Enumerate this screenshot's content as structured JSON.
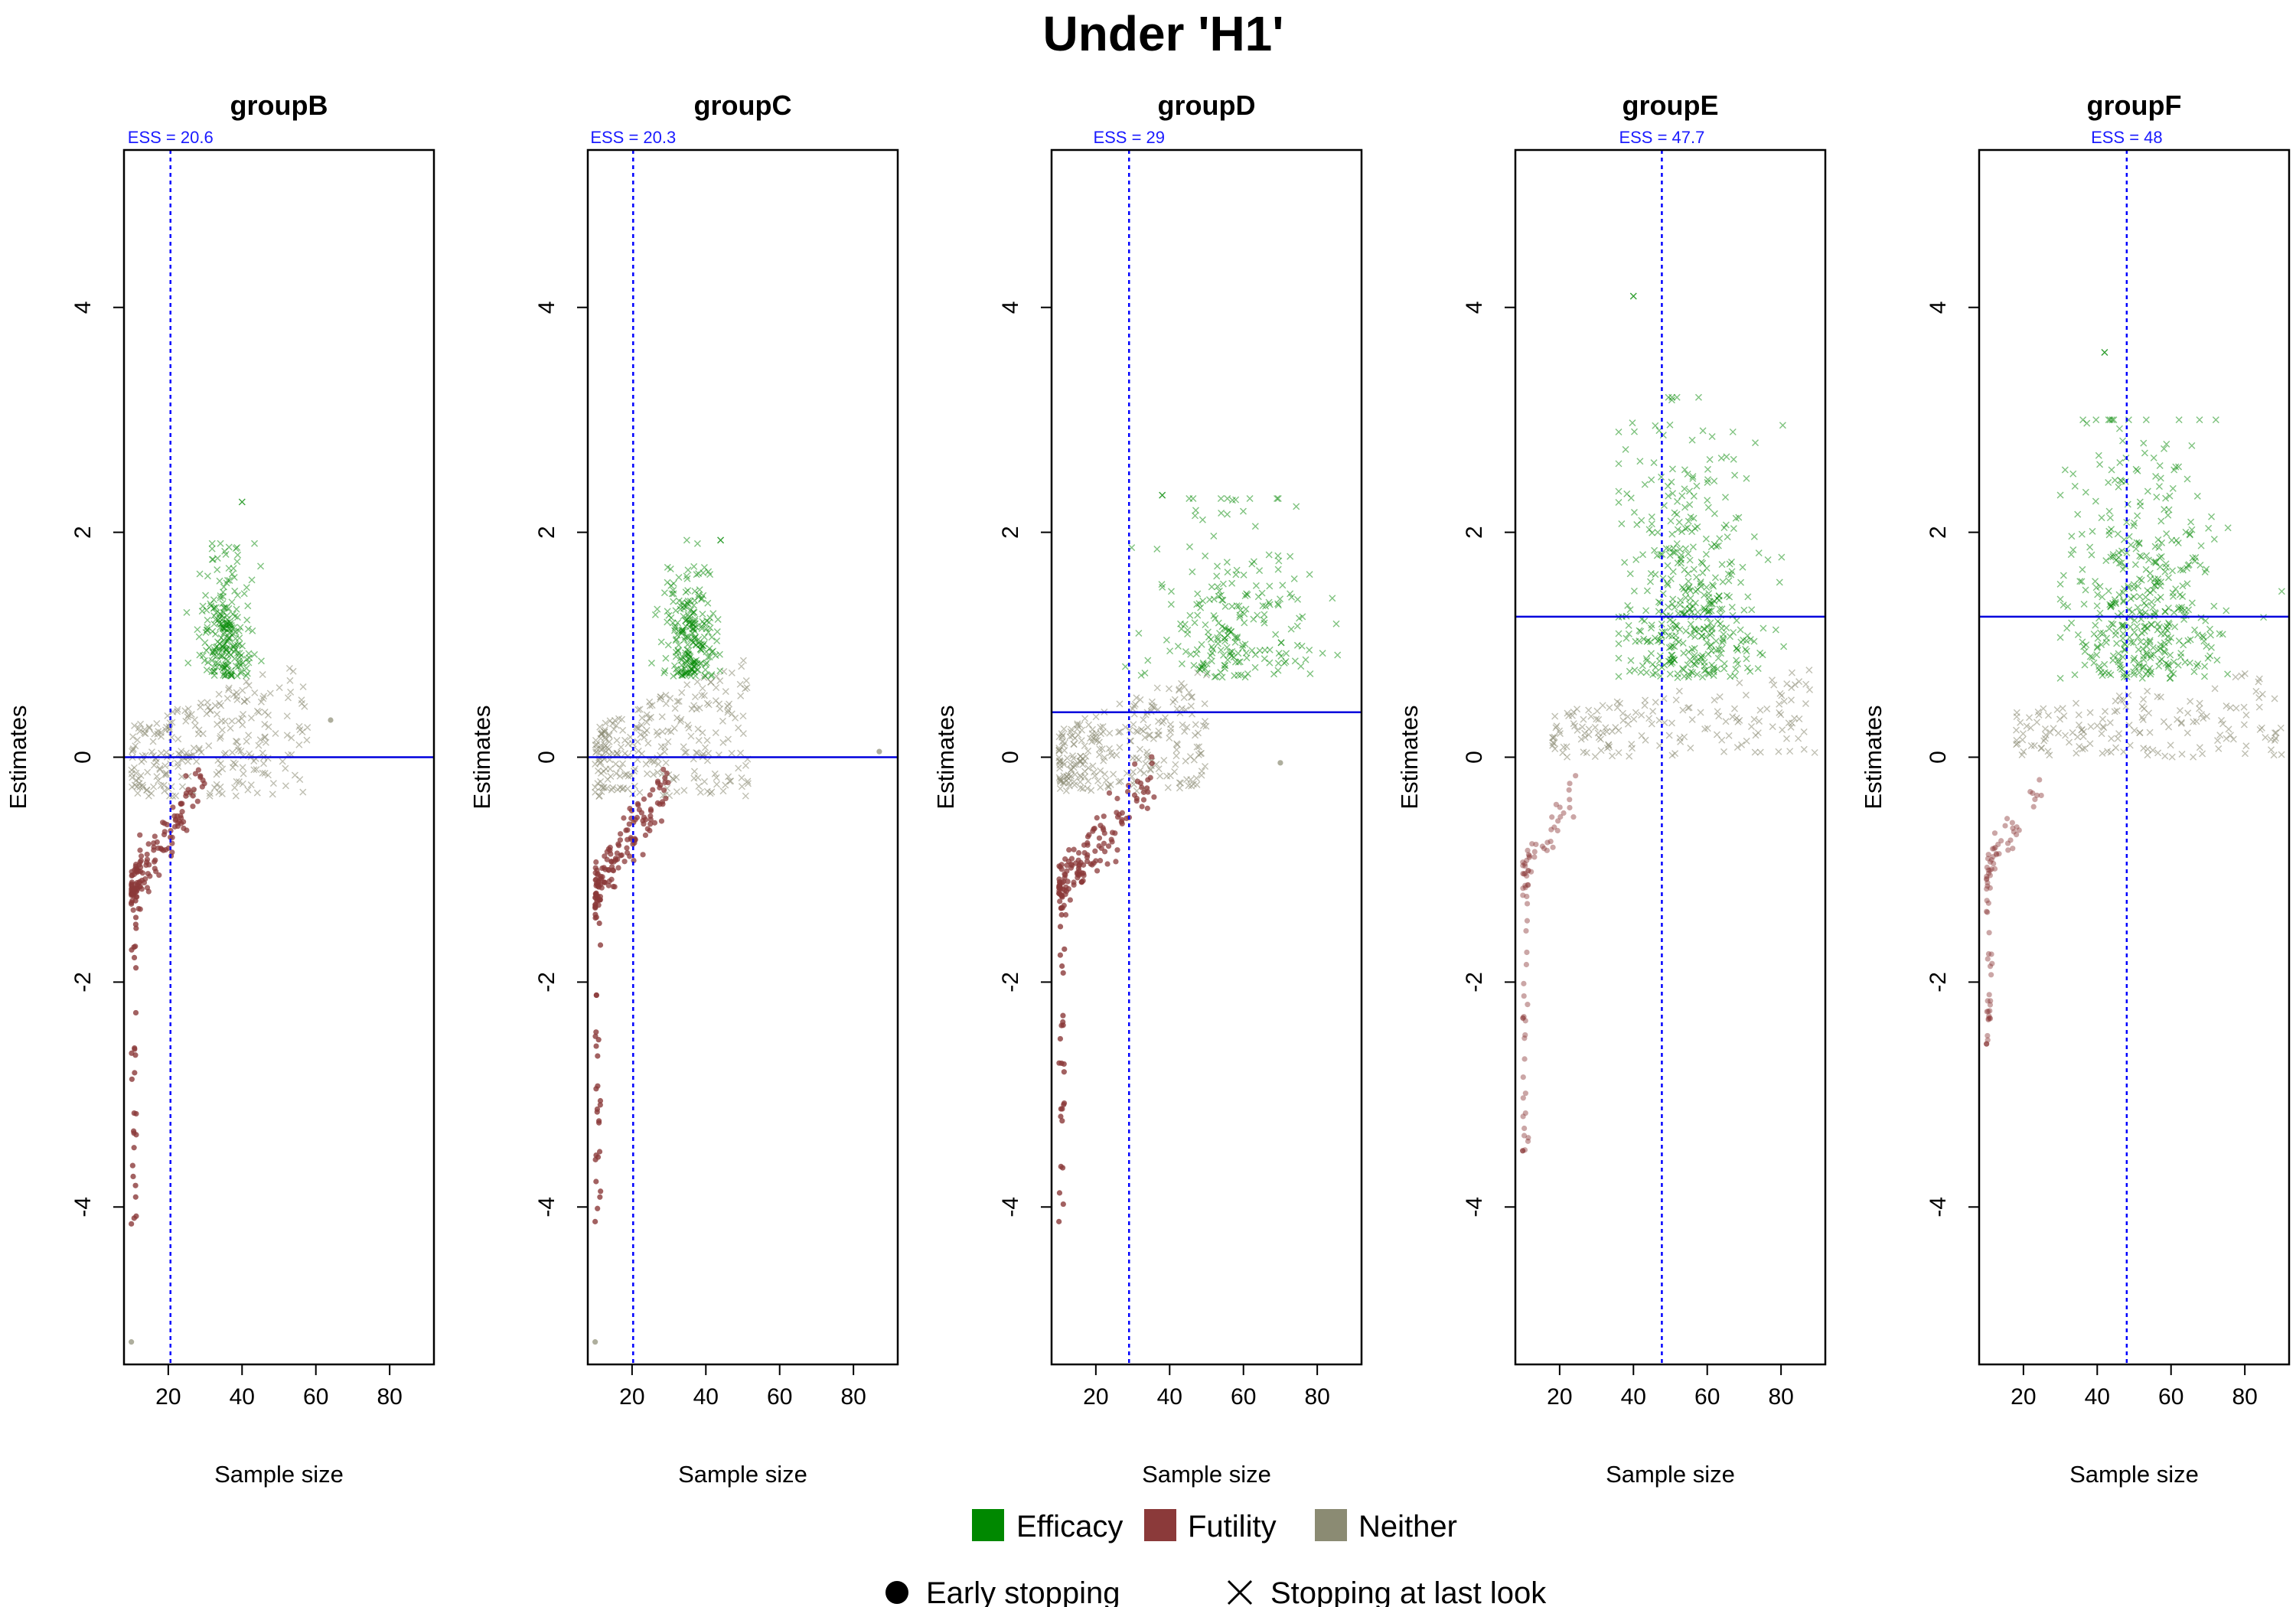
{
  "figure": {
    "title": "Under 'H1'"
  },
  "legend": {
    "items": [
      {
        "label": "Efficacy",
        "color": "#008800"
      },
      {
        "label": "Futility",
        "color": "#8b3a3a"
      },
      {
        "label": "Neither",
        "color": "#8b8b73"
      }
    ],
    "shapes": [
      {
        "label": "Early stopping",
        "icon": "filled-circle-icon"
      },
      {
        "label": "Stopping at last look",
        "icon": "cross-x-icon"
      }
    ]
  },
  "chart_data": [
    {
      "type": "scatter",
      "title": "groupB",
      "ess_label": "ESS = 20.6",
      "ess": 20.6,
      "xlabel": "Sample size",
      "ylabel": "Estimates",
      "xlim": [
        8,
        92
      ],
      "ylim": [
        -5.4,
        5.4
      ],
      "xticks": [
        20,
        40,
        60,
        80
      ],
      "yticks": [
        -4,
        -2,
        0,
        2,
        4
      ],
      "hline": 0.0,
      "efficacy": {
        "x_range": [
          25,
          46
        ],
        "y_range": [
          0.72,
          1.9
        ],
        "max_point": [
          40,
          2.27
        ]
      },
      "neither": {
        "x_range": [
          10,
          58
        ],
        "y_range": [
          -0.35,
          0.9
        ]
      },
      "futility": {
        "x_range": [
          10,
          30
        ],
        "y_range": [
          -1.2,
          -0.2
        ],
        "min_point": [
          10,
          -4.15
        ]
      },
      "grey_outliers": [
        [
          10,
          -5.2
        ],
        [
          64,
          0.33
        ]
      ]
    },
    {
      "type": "scatter",
      "title": "groupC",
      "ess_label": "ESS = 20.3",
      "ess": 20.3,
      "xlabel": "Sample size",
      "ylabel": "Estimates",
      "xlim": [
        8,
        92
      ],
      "ylim": [
        -5.4,
        5.4
      ],
      "xticks": [
        20,
        40,
        60,
        80
      ],
      "yticks": [
        -4,
        -2,
        0,
        2,
        4
      ],
      "hline": 0.0,
      "efficacy": {
        "x_range": [
          25,
          46
        ],
        "y_range": [
          0.72,
          1.93
        ],
        "max_point": [
          44,
          1.93
        ]
      },
      "neither": {
        "x_range": [
          10,
          52
        ],
        "y_range": [
          -0.35,
          0.9
        ]
      },
      "futility": {
        "x_range": [
          10,
          30
        ],
        "y_range": [
          -1.2,
          -0.2
        ],
        "min_point": [
          10,
          -4.13
        ]
      },
      "grey_outliers": [
        [
          10,
          -5.2
        ],
        [
          87,
          0.05
        ]
      ]
    },
    {
      "type": "scatter",
      "title": "groupD",
      "ess_label": "ESS = 29",
      "ess": 29,
      "xlabel": "Sample size",
      "ylabel": "Estimates",
      "xlim": [
        8,
        92
      ],
      "ylim": [
        -5.4,
        5.4
      ],
      "xticks": [
        20,
        40,
        60,
        80
      ],
      "yticks": [
        -4,
        -2,
        0,
        2,
        4
      ],
      "hline": 0.4,
      "efficacy": {
        "x_range": [
          28,
          88
        ],
        "y_range": [
          0.7,
          2.3
        ],
        "max_point": [
          38,
          2.33
        ]
      },
      "neither": {
        "x_range": [
          10,
          50
        ],
        "y_range": [
          -0.3,
          0.8
        ]
      },
      "futility": {
        "x_range": [
          10,
          36
        ],
        "y_range": [
          -1.2,
          -0.2
        ],
        "min_point": [
          10,
          -4.13
        ]
      },
      "grey_outliers": [
        [
          70,
          -0.05
        ]
      ]
    },
    {
      "type": "scatter",
      "title": "groupE",
      "ess_label": "ESS = 47.7",
      "ess": 47.7,
      "xlabel": "Sample size",
      "ylabel": "Estimates",
      "xlim": [
        8,
        92
      ],
      "ylim": [
        -5.4,
        5.4
      ],
      "xticks": [
        20,
        40,
        60,
        80
      ],
      "yticks": [
        -4,
        -2,
        0,
        2,
        4
      ],
      "hline": 1.25,
      "efficacy": {
        "x_range": [
          36,
          90
        ],
        "y_range": [
          0.7,
          3.2
        ],
        "max_point": [
          40,
          4.1
        ]
      },
      "neither": {
        "x_range": [
          18,
          90
        ],
        "y_range": [
          0.0,
          0.8
        ]
      },
      "futility": {
        "x_range": [
          10,
          25
        ],
        "y_range": [
          -1.0,
          -0.3
        ],
        "min_point": [
          10,
          -3.5
        ]
      },
      "grey_outliers": []
    },
    {
      "type": "scatter",
      "title": "groupF",
      "ess_label": "ESS = 48",
      "ess": 48,
      "xlabel": "Sample size",
      "ylabel": "Estimates",
      "xlim": [
        8,
        92
      ],
      "ylim": [
        -5.4,
        5.4
      ],
      "xticks": [
        20,
        40,
        60,
        80
      ],
      "yticks": [
        -4,
        -2,
        0,
        2,
        4
      ],
      "hline": 1.25,
      "efficacy": {
        "x_range": [
          30,
          90
        ],
        "y_range": [
          0.7,
          3.0
        ],
        "max_point": [
          42,
          3.6
        ]
      },
      "neither": {
        "x_range": [
          18,
          90
        ],
        "y_range": [
          0.0,
          0.8
        ]
      },
      "futility": {
        "x_range": [
          10,
          25
        ],
        "y_range": [
          -1.0,
          -0.25
        ],
        "min_point": [
          10,
          -2.55
        ]
      },
      "grey_outliers": []
    }
  ]
}
